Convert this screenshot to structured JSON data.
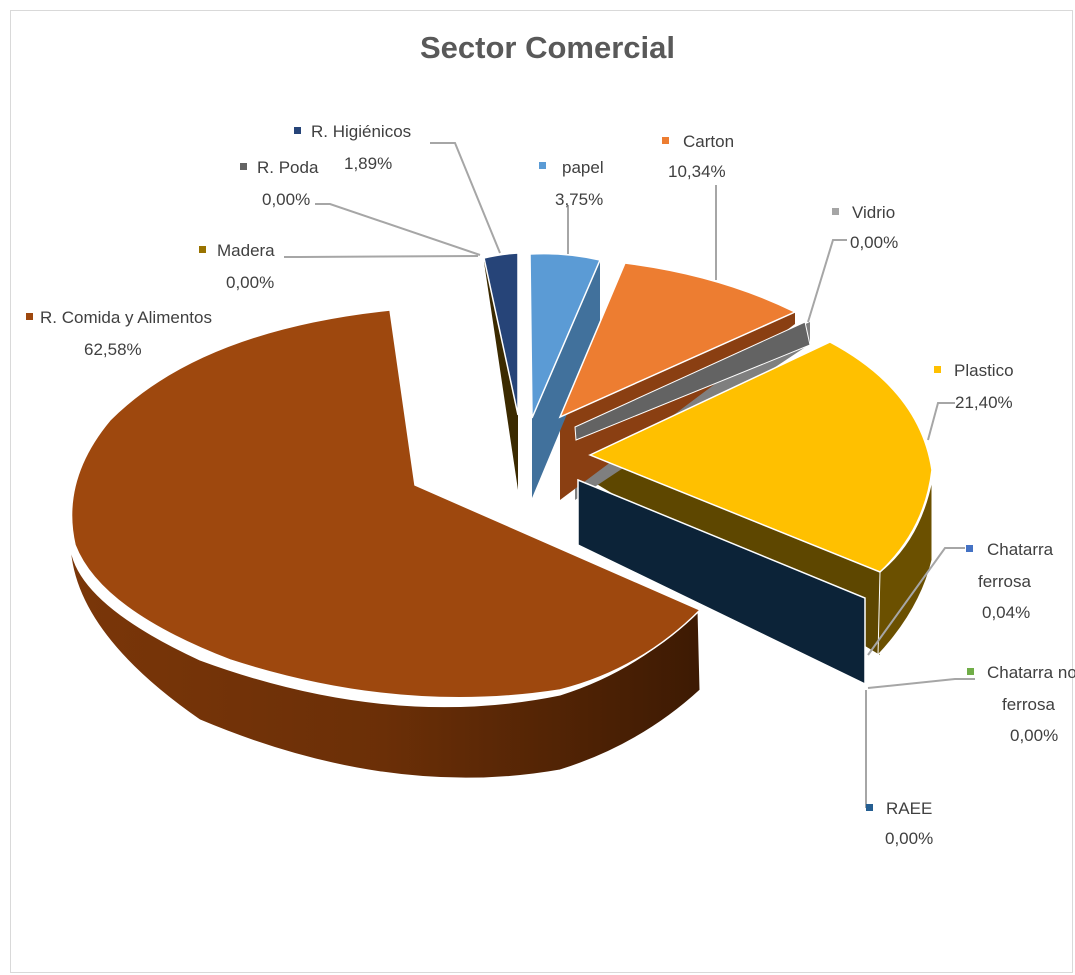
{
  "chart_data": {
    "type": "pie",
    "title": "Sector Comercial",
    "slices": [
      {
        "name": "papel",
        "percent_label": "3,75%",
        "value": 3.75,
        "color": "#5b9bd5"
      },
      {
        "name": "Carton",
        "percent_label": "10,34%",
        "value": 10.34,
        "color": "#ed7d31"
      },
      {
        "name": "Vidrio",
        "percent_label": "0,00%",
        "value": 0.0,
        "color": "#a5a5a5"
      },
      {
        "name": "Plastico",
        "percent_label": "21,40%",
        "value": 21.4,
        "color": "#ffc000"
      },
      {
        "name": "Chatarra ferrosa",
        "percent_label": "0,04%",
        "value": 0.04,
        "color": "#4472c4"
      },
      {
        "name": "Chatarra no ferrosa",
        "percent_label": "0,00%",
        "value": 0.0,
        "color": "#70ad47"
      },
      {
        "name": "RAEE",
        "percent_label": "0,00%",
        "value": 0.0,
        "color": "#255e91"
      },
      {
        "name": "R. Comida y Alimentos",
        "percent_label": "62,58%",
        "value": 62.58,
        "color": "#9e480e"
      },
      {
        "name": "Madera",
        "percent_label": "0,00%",
        "value": 0.0,
        "color": "#997300"
      },
      {
        "name": "R. Poda",
        "percent_label": "0,00%",
        "value": 0.0,
        "color": "#636363"
      },
      {
        "name": "R. Higiénicos",
        "percent_label": "1,89%",
        "value": 1.89,
        "color": "#264478"
      }
    ]
  }
}
